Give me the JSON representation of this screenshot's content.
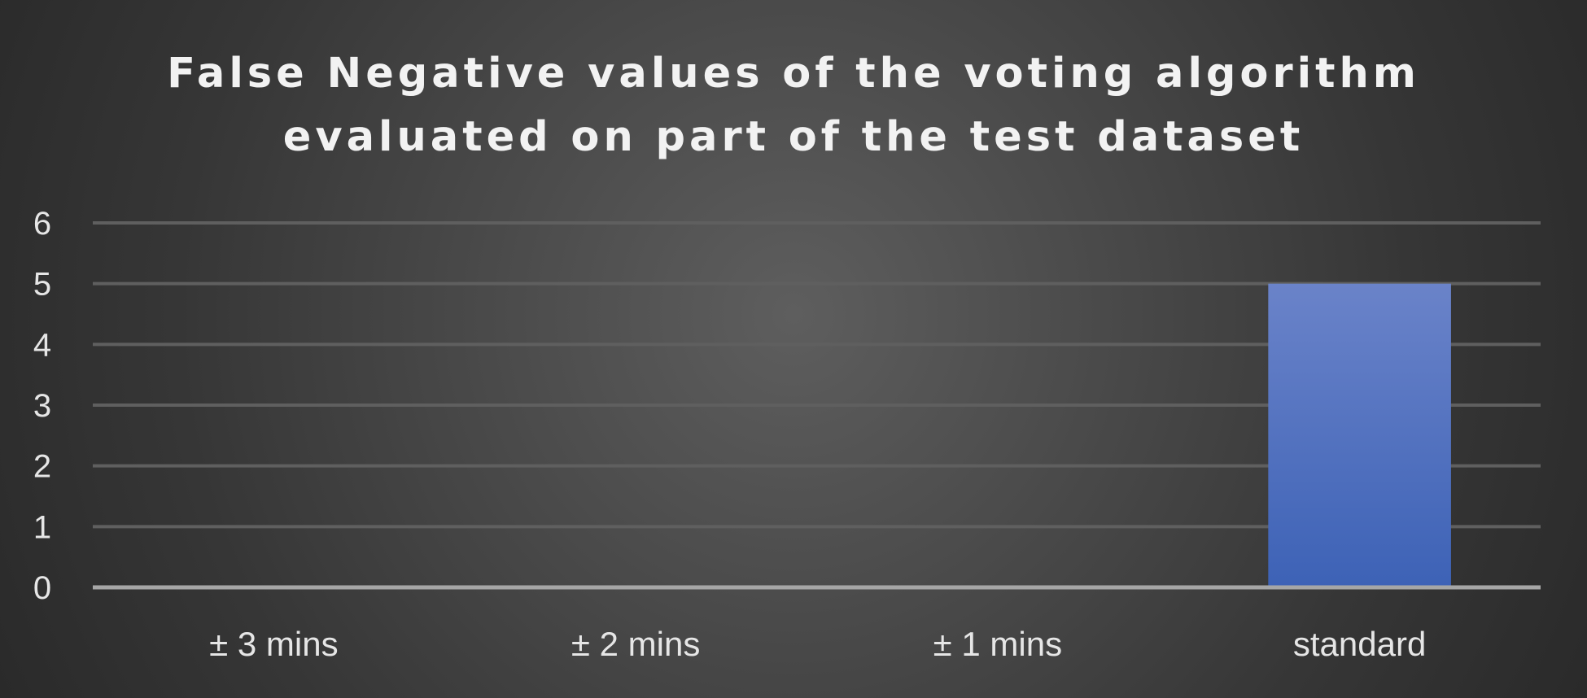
{
  "chart_data": {
    "type": "bar",
    "title": "False Negative values of the voting algorithm evaluated on part of the test dataset",
    "title_lines": [
      "False Negative values of the voting algorithm",
      "evaluated on part of the test dataset"
    ],
    "categories": [
      "± 3 mins",
      "± 2 mins",
      "± 1 mins",
      "standard"
    ],
    "values": [
      0,
      0,
      0,
      5
    ],
    "xlabel": "",
    "ylabel": "",
    "ylim": [
      0,
      6
    ],
    "yticks": [
      0,
      1,
      2,
      3,
      4,
      5,
      6
    ],
    "grid": true,
    "legend": "none",
    "colors": {
      "bar_top": "#6a83c9",
      "bar_bottom": "#3d62b6",
      "grid": "#5f5f5f",
      "axis": "#a6a6a6",
      "text": "#e6e6e6"
    }
  }
}
